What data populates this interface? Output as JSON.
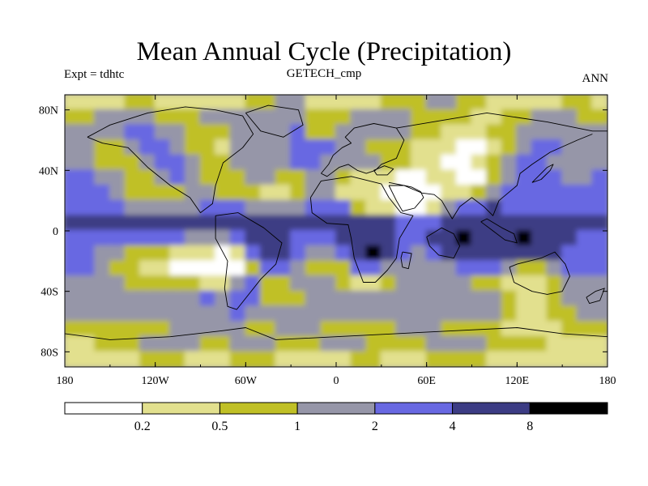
{
  "chart_data": {
    "type": "heatmap",
    "title": "Mean Annual Cycle (Precipitation)",
    "subtitle_left": "Expt = tdhtc",
    "subtitle_center": "GETECH_cmp",
    "subtitle_right": "ANN",
    "x_axis": {
      "range": [
        -180,
        180
      ],
      "ticks": [
        {
          "value": -180,
          "label": "180"
        },
        {
          "value": -120,
          "label": "120W"
        },
        {
          "value": -60,
          "label": "60W"
        },
        {
          "value": 0,
          "label": "0"
        },
        {
          "value": 60,
          "label": "60E"
        },
        {
          "value": 120,
          "label": "120E"
        },
        {
          "value": 180,
          "label": "180"
        }
      ]
    },
    "y_axis": {
      "range": [
        -90,
        90
      ],
      "ticks": [
        {
          "value": 80,
          "label": "80N"
        },
        {
          "value": 40,
          "label": "40N"
        },
        {
          "value": 0,
          "label": "0"
        },
        {
          "value": -40,
          "label": "40S"
        },
        {
          "value": -80,
          "label": "80S"
        }
      ]
    },
    "colorbar": {
      "levels": [
        0.2,
        0.5,
        1,
        2,
        4,
        8
      ],
      "labels": [
        "0.2",
        "0.5",
        "1",
        "2",
        "4",
        "8"
      ],
      "colors": [
        "#ffffff",
        "#e2e08e",
        "#c0c026",
        "#9696a8",
        "#6868e2",
        "#3c3c84",
        "#000000"
      ]
    },
    "field": {
      "description_units": "mm/day (annual mean precipitation, binned)",
      "lat_bands": [
        {
          "lat": 85,
          "classes_by_lon": [
            1,
            1,
            1,
            1,
            2,
            2,
            1,
            1,
            1,
            1,
            1,
            1,
            2,
            2,
            3,
            3,
            1,
            1,
            1,
            1,
            1,
            2,
            2,
            2,
            3,
            3,
            2,
            2,
            1,
            1,
            1,
            1,
            1,
            2,
            2,
            1
          ]
        },
        {
          "lat": 75,
          "classes_by_lon": [
            2,
            2,
            3,
            3,
            3,
            3,
            2,
            2,
            2,
            3,
            3,
            3,
            3,
            3,
            3,
            3,
            2,
            2,
            2,
            3,
            3,
            3,
            3,
            2,
            2,
            2,
            2,
            1,
            1,
            2,
            2,
            3,
            3,
            3,
            2,
            2
          ]
        },
        {
          "lat": 65,
          "classes_by_lon": [
            3,
            3,
            3,
            3,
            4,
            4,
            3,
            3,
            2,
            2,
            2,
            3,
            3,
            3,
            3,
            4,
            2,
            2,
            3,
            3,
            3,
            3,
            3,
            2,
            2,
            1,
            1,
            1,
            2,
            2,
            3,
            3,
            3,
            3,
            3,
            3
          ]
        },
        {
          "lat": 55,
          "classes_by_lon": [
            3,
            3,
            2,
            2,
            3,
            4,
            4,
            3,
            2,
            2,
            1,
            3,
            3,
            3,
            3,
            4,
            4,
            4,
            3,
            3,
            2,
            2,
            2,
            1,
            1,
            1,
            0,
            0,
            1,
            2,
            3,
            4,
            4,
            3,
            3,
            3
          ]
        },
        {
          "lat": 45,
          "classes_by_lon": [
            3,
            3,
            2,
            2,
            2,
            3,
            4,
            4,
            3,
            2,
            2,
            3,
            3,
            3,
            3,
            4,
            4,
            3,
            3,
            3,
            3,
            2,
            2,
            1,
            1,
            0,
            0,
            1,
            2,
            3,
            4,
            4,
            3,
            3,
            3,
            3
          ]
        },
        {
          "lat": 35,
          "classes_by_lon": [
            4,
            4,
            3,
            3,
            2,
            2,
            3,
            4,
            3,
            2,
            2,
            2,
            3,
            3,
            2,
            2,
            3,
            3,
            2,
            1,
            1,
            1,
            0,
            0,
            1,
            1,
            0,
            0,
            2,
            3,
            4,
            4,
            4,
            3,
            3,
            4
          ]
        },
        {
          "lat": 25,
          "classes_by_lon": [
            4,
            4,
            4,
            3,
            2,
            2,
            2,
            2,
            3,
            3,
            2,
            2,
            2,
            1,
            1,
            2,
            3,
            3,
            1,
            1,
            1,
            0,
            0,
            0,
            0,
            1,
            1,
            2,
            3,
            4,
            4,
            4,
            4,
            4,
            4,
            4
          ]
        },
        {
          "lat": 15,
          "classes_by_lon": [
            4,
            4,
            4,
            4,
            3,
            3,
            3,
            3,
            3,
            4,
            4,
            4,
            3,
            3,
            3,
            3,
            4,
            4,
            4,
            2,
            1,
            1,
            0,
            0,
            1,
            3,
            4,
            4,
            5,
            4,
            4,
            4,
            4,
            4,
            4,
            4
          ]
        },
        {
          "lat": 5,
          "classes_by_lon": [
            5,
            5,
            5,
            5,
            5,
            5,
            5,
            5,
            5,
            5,
            5,
            5,
            5,
            5,
            5,
            5,
            5,
            5,
            5,
            5,
            5,
            5,
            4,
            4,
            4,
            5,
            5,
            5,
            5,
            5,
            5,
            5,
            5,
            5,
            5,
            5
          ]
        },
        {
          "lat": -5,
          "classes_by_lon": [
            4,
            4,
            4,
            4,
            4,
            4,
            4,
            4,
            3,
            3,
            3,
            4,
            5,
            5,
            5,
            4,
            4,
            4,
            5,
            5,
            5,
            5,
            4,
            4,
            5,
            5,
            6,
            5,
            5,
            5,
            6,
            5,
            5,
            5,
            4,
            4
          ]
        },
        {
          "lat": -15,
          "classes_by_lon": [
            4,
            4,
            3,
            3,
            2,
            2,
            2,
            1,
            1,
            1,
            0,
            1,
            4,
            5,
            5,
            4,
            3,
            3,
            4,
            5,
            6,
            5,
            4,
            3,
            4,
            5,
            5,
            5,
            5,
            5,
            5,
            5,
            5,
            4,
            4,
            4
          ]
        },
        {
          "lat": -25,
          "classes_by_lon": [
            4,
            4,
            3,
            2,
            2,
            1,
            1,
            0,
            0,
            0,
            0,
            0,
            2,
            4,
            4,
            3,
            2,
            2,
            2,
            4,
            4,
            3,
            3,
            3,
            3,
            3,
            4,
            4,
            4,
            3,
            2,
            2,
            3,
            4,
            4,
            4
          ]
        },
        {
          "lat": -35,
          "classes_by_lon": [
            3,
            3,
            3,
            3,
            2,
            2,
            2,
            2,
            2,
            1,
            1,
            3,
            4,
            2,
            2,
            3,
            3,
            3,
            2,
            1,
            1,
            2,
            3,
            3,
            3,
            3,
            3,
            2,
            2,
            1,
            1,
            1,
            2,
            3,
            3,
            3
          ]
        },
        {
          "lat": -45,
          "classes_by_lon": [
            3,
            3,
            3,
            3,
            3,
            3,
            3,
            3,
            3,
            4,
            3,
            4,
            4,
            2,
            2,
            2,
            3,
            3,
            3,
            3,
            3,
            3,
            3,
            3,
            3,
            3,
            3,
            3,
            3,
            2,
            1,
            1,
            2,
            3,
            3,
            3
          ]
        },
        {
          "lat": -55,
          "classes_by_lon": [
            3,
            3,
            3,
            3,
            3,
            3,
            3,
            3,
            3,
            3,
            3,
            4,
            3,
            3,
            3,
            3,
            3,
            3,
            3,
            3,
            3,
            3,
            3,
            3,
            3,
            3,
            3,
            3,
            3,
            2,
            1,
            1,
            2,
            2,
            3,
            3
          ]
        },
        {
          "lat": -65,
          "classes_by_lon": [
            2,
            2,
            2,
            2,
            2,
            2,
            2,
            3,
            3,
            3,
            3,
            3,
            2,
            2,
            3,
            3,
            3,
            2,
            2,
            2,
            2,
            2,
            3,
            3,
            3,
            2,
            2,
            2,
            2,
            1,
            1,
            1,
            1,
            2,
            2,
            2
          ]
        },
        {
          "lat": -75,
          "classes_by_lon": [
            1,
            1,
            2,
            2,
            2,
            3,
            3,
            3,
            3,
            2,
            2,
            3,
            3,
            3,
            2,
            2,
            2,
            3,
            3,
            3,
            2,
            2,
            2,
            2,
            3,
            3,
            3,
            3,
            2,
            2,
            2,
            2,
            1,
            1,
            1,
            1
          ]
        },
        {
          "lat": -85,
          "classes_by_lon": [
            1,
            1,
            1,
            1,
            1,
            2,
            2,
            2,
            1,
            1,
            1,
            2,
            2,
            2,
            1,
            1,
            1,
            1,
            1,
            2,
            2,
            1,
            1,
            1,
            2,
            2,
            2,
            2,
            1,
            1,
            1,
            1,
            1,
            1,
            1,
            1
          ]
        }
      ],
      "lon_centers": [
        -175,
        -165,
        -155,
        -145,
        -135,
        -125,
        -115,
        -105,
        -95,
        -85,
        -75,
        -65,
        -55,
        -45,
        -35,
        -25,
        -15,
        -5,
        5,
        15,
        25,
        35,
        45,
        55,
        65,
        75,
        85,
        95,
        105,
        115,
        125,
        135,
        145,
        155,
        165,
        175
      ]
    }
  }
}
